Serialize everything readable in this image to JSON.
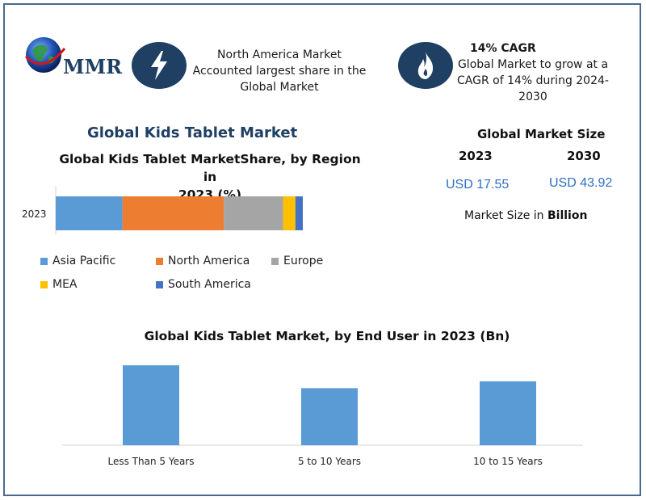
{
  "logo": {
    "text": "MMR",
    "icon": "globe-icon"
  },
  "highlights": {
    "north_america": {
      "icon": "lightning-icon",
      "lines": [
        "North America Market",
        "Accounted largest share in the",
        "Global Market"
      ]
    },
    "cagr": {
      "icon": "flame-icon",
      "heading": "14% CAGR",
      "lines": [
        "Global Market to grow at a",
        "CAGR of 14% during 2024-",
        "2030"
      ]
    }
  },
  "main_title": "Global Kids Tablet Market",
  "market_size": {
    "title": "Global Market Size",
    "year_a": "2023",
    "year_b": "2030",
    "value_a": "USD 17.55",
    "value_b": "USD 43.92",
    "unit_prefix": "Market Size in ",
    "unit_bold": "Billion"
  },
  "chart_data": [
    {
      "type": "bar",
      "orientation": "horizontal-stacked",
      "title_lines": [
        "Global Kids Tablet MarketShare, by Region in",
        "2023 (%)"
      ],
      "categories": [
        "2023"
      ],
      "series": [
        {
          "name": "Asia Pacific",
          "values": [
            27
          ],
          "color": "#5b9bd5"
        },
        {
          "name": "North America",
          "values": [
            41
          ],
          "color": "#ed7d31"
        },
        {
          "name": "Europe",
          "values": [
            24
          ],
          "color": "#a5a5a5"
        },
        {
          "name": "MEA",
          "values": [
            5
          ],
          "color": "#ffc000"
        },
        {
          "name": "South America",
          "values": [
            3
          ],
          "color": "#4472c4"
        }
      ],
      "xlim": [
        0,
        100
      ],
      "legend_position": "bottom"
    },
    {
      "type": "bar",
      "title": "Global Kids Tablet Market, by End User in 2023 (Bn)",
      "categories": [
        "Less Than 5 Years",
        "5 to 10 Years",
        "10 to 15 Years"
      ],
      "values": [
        7.0,
        5.0,
        5.6
      ],
      "color": "#5b9bd5",
      "ylim": [
        0,
        7.5
      ],
      "grid": false
    }
  ]
}
